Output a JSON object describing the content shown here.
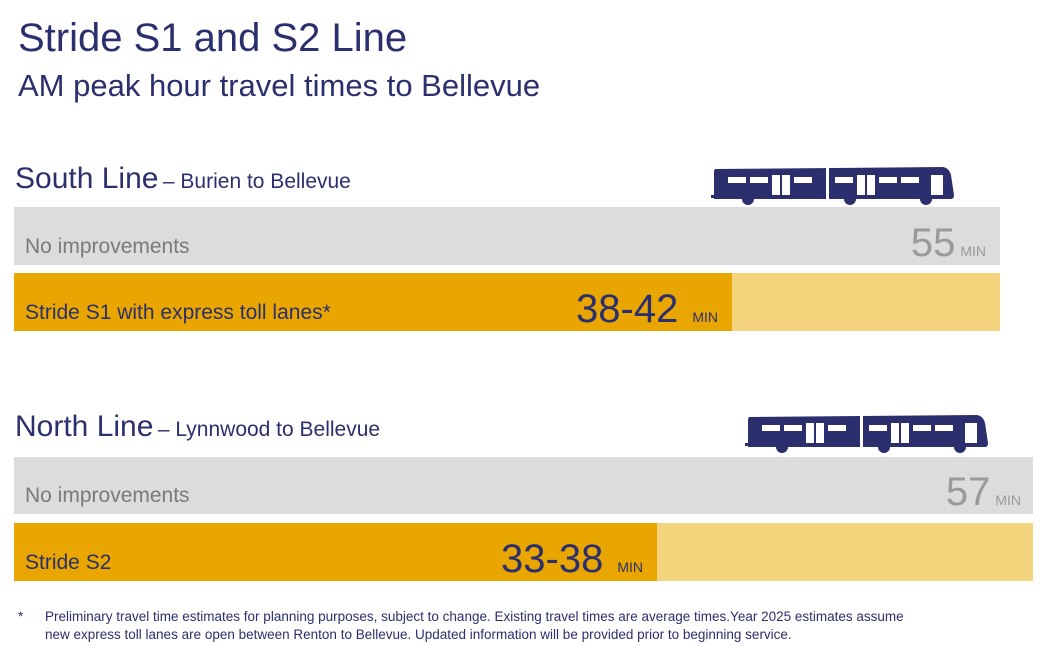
{
  "title": "Stride S1 and S2 Line",
  "subtitle": "AM peak hour travel times to Bellevue",
  "colors": {
    "navy": "#2b2f6e",
    "baseline_bar": "#dcdcdc",
    "stride_fill": "#eaa600",
    "stride_track": "#f4d47c",
    "baseline_text": "#9a9a9a"
  },
  "chart_data": {
    "type": "bar",
    "orientation": "horizontal",
    "unit": "MIN",
    "groups": [
      {
        "name": "South Line",
        "route": "Burien to Bellevue",
        "icon": "bus-icon",
        "bars": [
          {
            "label": "No improvements",
            "value": 55,
            "display": "55"
          },
          {
            "label": "Stride S1 with express toll lanes*",
            "range": [
              38,
              42
            ],
            "display": "38-42"
          }
        ]
      },
      {
        "name": "North Line",
        "route": "Lynnwood to Bellevue",
        "icon": "bus-icon",
        "bars": [
          {
            "label": "No improvements",
            "value": 57,
            "display": "57"
          },
          {
            "label": "Stride S2",
            "range": [
              33,
              38
            ],
            "display": "33-38"
          }
        ]
      }
    ]
  },
  "footnote": {
    "marker": "*",
    "text": "Preliminary travel time estimates for planning purposes, subject to change. Existing travel times are average times.Year 2025 estimates assume new express toll lanes are open between Renton to Bellevue. Updated information will be provided prior to beginning service."
  }
}
